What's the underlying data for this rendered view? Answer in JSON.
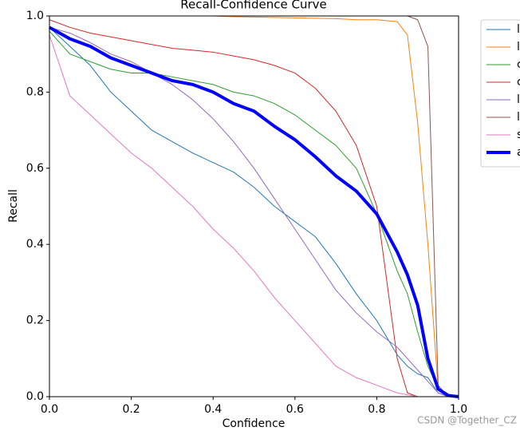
{
  "chart_data": {
    "type": "line",
    "title": "Recall-Confidence Curve",
    "xlabel": "Confidence",
    "ylabel": "Recall",
    "watermark": "CSDN @Together_CZ",
    "x": [
      0,
      0.05,
      0.1,
      0.15,
      0.2,
      0.25,
      0.3,
      0.35,
      0.4,
      0.45,
      0.5,
      0.55,
      0.6,
      0.65,
      0.7,
      0.75,
      0.8,
      0.85,
      0.875,
      0.9,
      0.925,
      0.95,
      0.975,
      1.0
    ],
    "xlim": [
      0,
      1
    ],
    "ylim": [
      0,
      1
    ],
    "xticks": [
      {
        "value": 0,
        "label": "0.0"
      },
      0.2,
      0.4,
      0.6,
      0.8,
      {
        "value": 1,
        "label": "1.0"
      }
    ],
    "yticks": [
      {
        "value": 0,
        "label": "0.0"
      },
      0.2,
      0.4,
      0.6,
      0.8,
      {
        "value": 1,
        "label": "1.0"
      }
    ],
    "legend": "outside upper right",
    "series": [
      {
        "name": "l",
        "color": "#1f77b4",
        "width": 1,
        "values": [
          0.97,
          0.92,
          0.87,
          0.8,
          0.75,
          0.7,
          0.67,
          0.64,
          0.615,
          0.59,
          0.55,
          0.5,
          0.46,
          0.42,
          0.35,
          0.27,
          0.2,
          0.11,
          0.08,
          0.06,
          0.05,
          0.01,
          0,
          0
        ]
      },
      {
        "name": "l",
        "color": "#ff7f0e",
        "width": 1,
        "values": [
          1,
          1,
          1,
          1,
          1,
          1,
          1,
          1,
          1,
          0.998,
          0.997,
          0.996,
          0.995,
          0.994,
          0.993,
          0.99,
          0.99,
          0.985,
          0.95,
          0.72,
          0.4,
          0.02,
          0,
          0
        ]
      },
      {
        "name": "c",
        "color": "#2ca02c",
        "width": 1,
        "values": [
          0.96,
          0.9,
          0.88,
          0.86,
          0.85,
          0.85,
          0.84,
          0.83,
          0.82,
          0.8,
          0.79,
          0.77,
          0.74,
          0.7,
          0.66,
          0.6,
          0.48,
          0.33,
          0.27,
          0.17,
          0.08,
          0.02,
          0,
          0
        ]
      },
      {
        "name": "c",
        "color": "#d62728",
        "width": 1,
        "values": [
          0.99,
          0.97,
          0.955,
          0.945,
          0.935,
          0.925,
          0.915,
          0.91,
          0.905,
          0.895,
          0.885,
          0.87,
          0.85,
          0.81,
          0.75,
          0.66,
          0.5,
          0.1,
          0.01,
          0,
          0,
          0,
          0,
          0
        ]
      },
      {
        "name": "l",
        "color": "#9467bd",
        "width": 1,
        "values": [
          0.97,
          0.955,
          0.93,
          0.9,
          0.88,
          0.85,
          0.82,
          0.78,
          0.73,
          0.67,
          0.6,
          0.52,
          0.44,
          0.36,
          0.28,
          0.22,
          0.17,
          0.13,
          0.1,
          0.07,
          0.04,
          0.01,
          0,
          0
        ]
      },
      {
        "name": "l",
        "color": "#8c564b",
        "width": 1,
        "values": [
          1,
          1,
          1,
          1,
          1,
          1,
          1,
          1,
          1,
          1,
          1,
          1,
          1,
          1,
          1,
          1,
          1,
          1,
          1,
          0.99,
          0.92,
          0.03,
          0,
          0
        ]
      },
      {
        "name": "s",
        "color": "#e377c2",
        "width": 1,
        "values": [
          0.95,
          0.79,
          0.74,
          0.69,
          0.64,
          0.6,
          0.55,
          0.5,
          0.44,
          0.39,
          0.33,
          0.26,
          0.2,
          0.14,
          0.08,
          0.05,
          0.03,
          0.01,
          0.005,
          0,
          0,
          0,
          0,
          0
        ]
      },
      {
        "name": "a",
        "color": "#0000ff",
        "width": 4,
        "values": [
          0.97,
          0.94,
          0.92,
          0.89,
          0.87,
          0.85,
          0.83,
          0.82,
          0.8,
          0.77,
          0.75,
          0.71,
          0.675,
          0.63,
          0.58,
          0.54,
          0.48,
          0.38,
          0.32,
          0.24,
          0.1,
          0.02,
          0.003,
          0
        ]
      }
    ]
  }
}
